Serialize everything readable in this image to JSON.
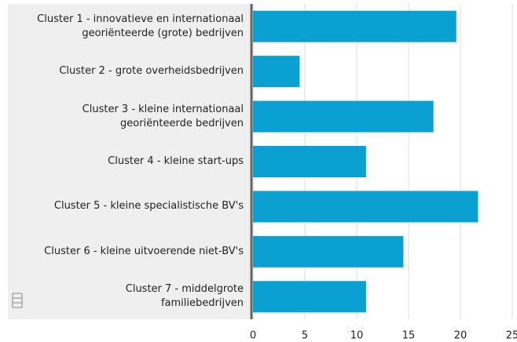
{
  "chart_data": {
    "type": "barh",
    "categories": [
      "Cluster 1 - innovatieve en internationaal\ngeoriënteerde (grote) bedrijven",
      "Cluster 2 - grote overheidsbedrijven",
      "Cluster 3 - kleine internationaal\ngeoriënteerde bedrijven",
      "Cluster 4 - kleine start-ups",
      "Cluster 5 - kleine specialistische BV's",
      "Cluster 6 - kleine uitvoerende niet-BV's",
      "Cluster 7 - middelgrote\nfamiliebedrijven"
    ],
    "values": [
      19.6,
      4.5,
      17.4,
      10.9,
      21.7,
      14.5,
      10.9
    ],
    "color": "#0aa0d2",
    "xlim": [
      0,
      25
    ],
    "xticks": [
      0,
      5,
      10,
      15,
      20,
      25
    ],
    "grid": true
  }
}
